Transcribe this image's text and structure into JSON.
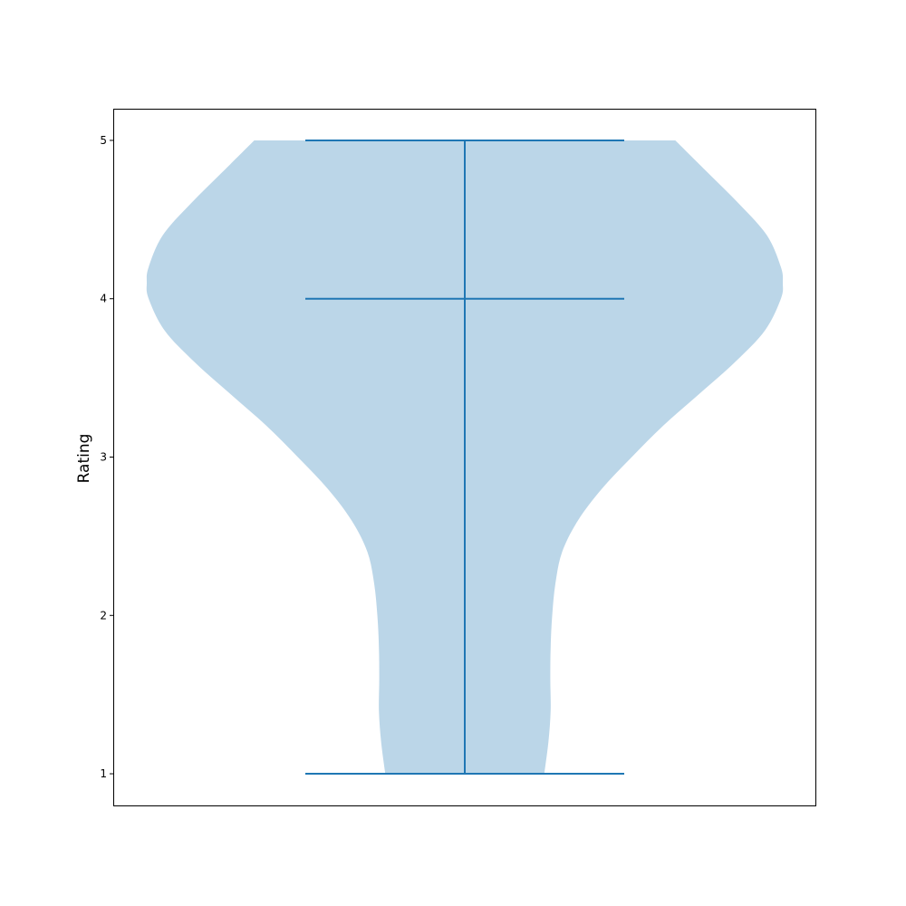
{
  "chart_data": {
    "type": "violin",
    "ylabel": "Rating",
    "ylim": [
      0.8,
      5.2
    ],
    "yticks": [
      "1",
      "2",
      "3",
      "4",
      "5"
    ],
    "ytick_values": [
      1,
      2,
      3,
      4,
      5
    ],
    "grid": false,
    "series": [
      {
        "min": 1,
        "median": 4,
        "max": 5,
        "density_profile": [
          {
            "y": 1.0,
            "half_width": 0.25
          },
          {
            "y": 1.2,
            "half_width": 0.263
          },
          {
            "y": 1.4,
            "half_width": 0.27
          },
          {
            "y": 1.6,
            "half_width": 0.269
          },
          {
            "y": 1.8,
            "half_width": 0.27
          },
          {
            "y": 2.0,
            "half_width": 0.275
          },
          {
            "y": 2.2,
            "half_width": 0.285
          },
          {
            "y": 2.4,
            "half_width": 0.306
          },
          {
            "y": 2.6,
            "half_width": 0.356
          },
          {
            "y": 2.8,
            "half_width": 0.431
          },
          {
            "y": 3.0,
            "half_width": 0.525
          },
          {
            "y": 3.2,
            "half_width": 0.625
          },
          {
            "y": 3.4,
            "half_width": 0.738
          },
          {
            "y": 3.6,
            "half_width": 0.85
          },
          {
            "y": 3.8,
            "half_width": 0.944
          },
          {
            "y": 4.0,
            "half_width": 0.994
          },
          {
            "y": 4.1,
            "half_width": 1.0
          },
          {
            "y": 4.2,
            "half_width": 0.994
          },
          {
            "y": 4.4,
            "half_width": 0.95
          },
          {
            "y": 4.6,
            "half_width": 0.862
          },
          {
            "y": 4.8,
            "half_width": 0.762
          },
          {
            "y": 5.0,
            "half_width": 0.662
          }
        ]
      }
    ],
    "colors": {
      "body": "#1f77b4",
      "body_opacity": 0.3,
      "lines": "#1f77b4",
      "axes": "#000000"
    }
  }
}
